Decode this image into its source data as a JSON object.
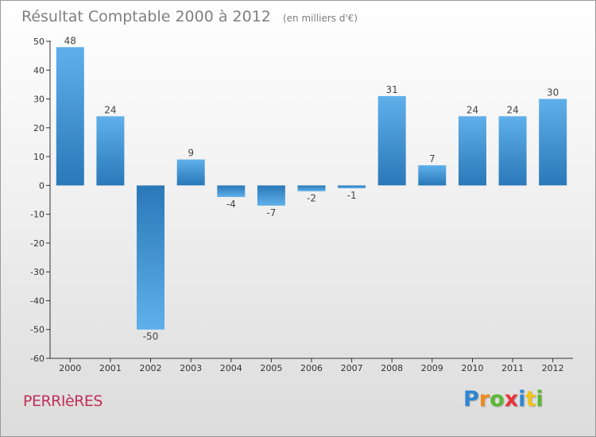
{
  "chart_data": {
    "type": "bar",
    "title": "Résultat Comptable 2000 à 2012",
    "subtitle": "(en milliers d'€)",
    "categories": [
      "2000",
      "2001",
      "2002",
      "2003",
      "2004",
      "2005",
      "2006",
      "2007",
      "2008",
      "2009",
      "2010",
      "2011",
      "2012"
    ],
    "values": [
      48,
      24,
      -50,
      9,
      -4,
      -7,
      -2,
      -1,
      31,
      7,
      24,
      24,
      30
    ],
    "value_labels": [
      "48",
      "24",
      "-50",
      "9",
      "-4",
      "-7",
      "-2",
      "-1",
      "31",
      "7",
      "24",
      "24",
      "30"
    ],
    "yticks": [
      -60,
      -50,
      -40,
      -30,
      -20,
      -10,
      0,
      10,
      20,
      30,
      40,
      50
    ],
    "ylim": [
      -60,
      50
    ],
    "xlabel": "",
    "ylabel": "",
    "grid": false,
    "colors": {
      "bar_light": "#5fb0ea",
      "bar_dark": "#2a78b8",
      "axis": "#333333"
    }
  },
  "commune": "PERRIèRES",
  "logo": {
    "letters": [
      "P",
      "r",
      "o",
      "x",
      "i",
      "t",
      "i"
    ],
    "colors": [
      "#2e86d1",
      "#f08a1c",
      "#5bb832",
      "#e8343b",
      "#2e86d1",
      "#f0c21c",
      "#5bb832"
    ]
  }
}
